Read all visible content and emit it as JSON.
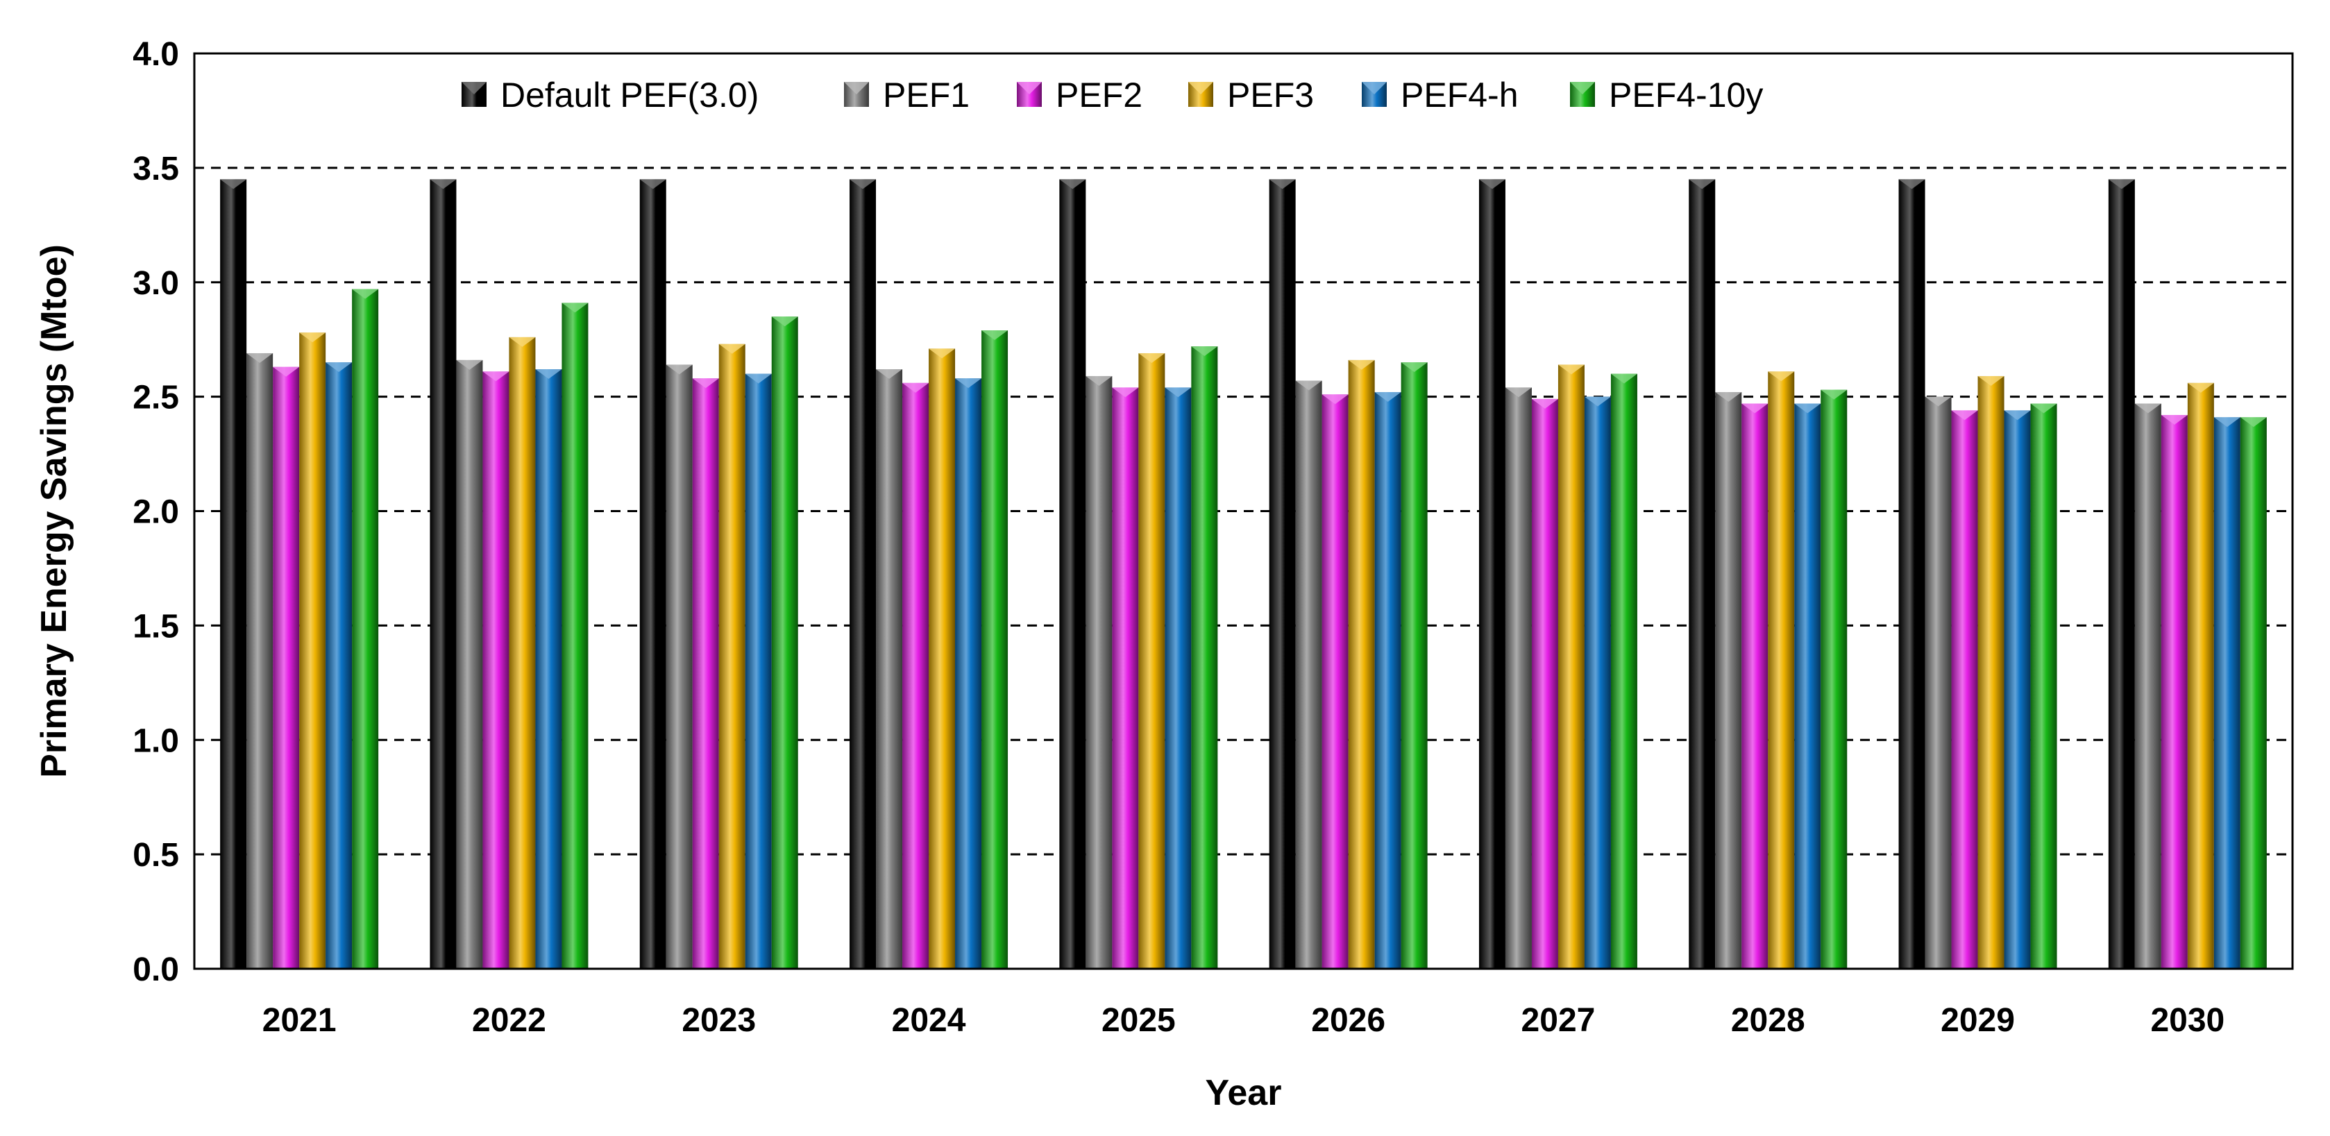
{
  "chart_data": {
    "type": "bar",
    "title": "",
    "xlabel": "Year",
    "ylabel": "Primary Energy Savings (Mtoe)",
    "ylim": [
      0,
      4.0
    ],
    "yticks": [
      "0.0",
      "0.5",
      "1.0",
      "1.5",
      "2.0",
      "2.5",
      "3.0",
      "3.5",
      "4.0"
    ],
    "grid": "horizontal dashed",
    "legend_position": "top",
    "categories": [
      "2021",
      "2022",
      "2023",
      "2024",
      "2025",
      "2026",
      "2027",
      "2028",
      "2029",
      "2030"
    ],
    "series": [
      {
        "name": "Default PEF(3.0)",
        "color": "#000000",
        "values": [
          3.45,
          3.45,
          3.45,
          3.45,
          3.45,
          3.45,
          3.45,
          3.45,
          3.45,
          3.45
        ]
      },
      {
        "name": "PEF1",
        "color": "#7f7f7f",
        "values": [
          2.69,
          2.66,
          2.64,
          2.62,
          2.59,
          2.57,
          2.54,
          2.52,
          2.5,
          2.47
        ]
      },
      {
        "name": "PEF2",
        "color": "#e61fe6",
        "values": [
          2.63,
          2.61,
          2.58,
          2.56,
          2.54,
          2.51,
          2.49,
          2.47,
          2.44,
          2.42
        ]
      },
      {
        "name": "PEF3",
        "color": "#f0b400",
        "values": [
          2.78,
          2.76,
          2.73,
          2.71,
          2.69,
          2.66,
          2.64,
          2.61,
          2.59,
          2.56
        ]
      },
      {
        "name": "PEF4-h",
        "color": "#0b72c4",
        "values": [
          2.65,
          2.62,
          2.6,
          2.58,
          2.54,
          2.52,
          2.5,
          2.47,
          2.44,
          2.41
        ]
      },
      {
        "name": "PEF4-10y",
        "color": "#17b817",
        "values": [
          2.97,
          2.91,
          2.85,
          2.79,
          2.72,
          2.65,
          2.6,
          2.53,
          2.47,
          2.41
        ]
      }
    ]
  }
}
